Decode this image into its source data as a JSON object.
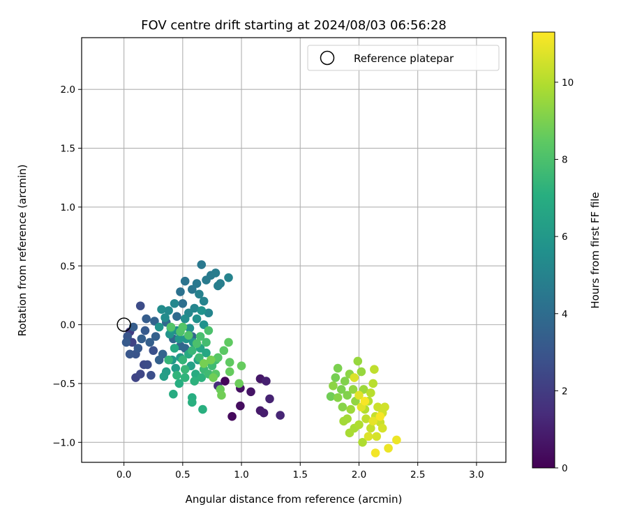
{
  "chart_data": {
    "type": "scatter",
    "title": "FOV centre drift starting at 2024/08/03 06:56:28",
    "xlabel": "Angular distance from reference (arcmin)",
    "ylabel": "Rotation from reference (arcmin)",
    "xlim": [
      -0.36,
      3.25
    ],
    "ylim": [
      -1.17,
      2.44
    ],
    "xticks": [
      0.0,
      0.5,
      1.0,
      1.5,
      2.0,
      2.5,
      3.0
    ],
    "xtick_labels": [
      "0.0",
      "0.5",
      "1.0",
      "1.5",
      "2.0",
      "2.5",
      "3.0"
    ],
    "yticks": [
      -1.0,
      -0.5,
      0.0,
      0.5,
      1.0,
      1.5,
      2.0
    ],
    "ytick_labels": [
      "−1.0",
      "−0.5",
      "0.0",
      "0.5",
      "1.0",
      "1.5",
      "2.0"
    ],
    "grid": true,
    "legend": {
      "label": "Reference platepar",
      "placement": "top-right"
    },
    "reference_point": {
      "x": 0.0,
      "y": 0.0
    },
    "colorbar": {
      "label": "Hours from first FF file",
      "range": [
        0,
        11.3
      ],
      "ticks": [
        0,
        2,
        4,
        6,
        8,
        10
      ],
      "tick_labels": [
        "0",
        "2",
        "4",
        "6",
        "8",
        "10"
      ],
      "colormap": "viridis"
    },
    "points": [
      {
        "x": 0.86,
        "y": -0.48,
        "c": 0.2
      },
      {
        "x": 0.92,
        "y": -0.78,
        "c": 0.3
      },
      {
        "x": 0.99,
        "y": -0.69,
        "c": 0.4
      },
      {
        "x": 0.99,
        "y": -0.54,
        "c": 0.5
      },
      {
        "x": 1.08,
        "y": -0.57,
        "c": 0.6
      },
      {
        "x": 1.16,
        "y": -0.46,
        "c": 0.7
      },
      {
        "x": 1.16,
        "y": -0.73,
        "c": 0.8
      },
      {
        "x": 1.19,
        "y": -0.75,
        "c": 0.9
      },
      {
        "x": 1.21,
        "y": -0.48,
        "c": 1.0
      },
      {
        "x": 1.24,
        "y": -0.63,
        "c": 1.1
      },
      {
        "x": 1.33,
        "y": -0.77,
        "c": 1.2
      },
      {
        "x": 0.8,
        "y": -0.52,
        "c": 1.4
      },
      {
        "x": 0.05,
        "y": -0.06,
        "c": 2.0
      },
      {
        "x": 0.07,
        "y": -0.15,
        "c": 2.2
      },
      {
        "x": 0.1,
        "y": -0.45,
        "c": 2.3
      },
      {
        "x": 0.14,
        "y": -0.42,
        "c": 2.4
      },
      {
        "x": 0.14,
        "y": 0.16,
        "c": 2.6
      },
      {
        "x": 0.17,
        "y": -0.34,
        "c": 2.5
      },
      {
        "x": 0.2,
        "y": -0.34,
        "c": 2.6
      },
      {
        "x": 0.23,
        "y": -0.43,
        "c": 2.7
      },
      {
        "x": 0.25,
        "y": -0.22,
        "c": 2.8
      },
      {
        "x": 0.1,
        "y": -0.25,
        "c": 2.9
      },
      {
        "x": 0.03,
        "y": -0.1,
        "c": 3.0
      },
      {
        "x": 0.05,
        "y": -0.25,
        "c": 3.0
      },
      {
        "x": 0.12,
        "y": -0.2,
        "c": 3.1
      },
      {
        "x": 0.18,
        "y": -0.05,
        "c": 3.2
      },
      {
        "x": 0.19,
        "y": 0.05,
        "c": 3.3
      },
      {
        "x": 0.02,
        "y": -0.15,
        "c": 3.2
      },
      {
        "x": 0.08,
        "y": -0.02,
        "c": 3.3
      },
      {
        "x": 0.15,
        "y": -0.12,
        "c": 3.4
      },
      {
        "x": 0.22,
        "y": -0.15,
        "c": 3.4
      },
      {
        "x": 0.27,
        "y": -0.1,
        "c": 3.5
      },
      {
        "x": 0.3,
        "y": -0.3,
        "c": 3.5
      },
      {
        "x": 0.33,
        "y": -0.25,
        "c": 3.6
      },
      {
        "x": 0.26,
        "y": 0.03,
        "c": 3.6
      },
      {
        "x": 0.42,
        "y": -0.12,
        "c": 3.7
      },
      {
        "x": 0.48,
        "y": -0.18,
        "c": 3.7
      },
      {
        "x": 0.52,
        "y": -0.2,
        "c": 3.8
      },
      {
        "x": 0.58,
        "y": -0.1,
        "c": 3.8
      },
      {
        "x": 0.45,
        "y": 0.07,
        "c": 3.9
      },
      {
        "x": 0.36,
        "y": 0.02,
        "c": 3.9
      },
      {
        "x": 0.4,
        "y": -0.03,
        "c": 4.0
      },
      {
        "x": 0.5,
        "y": 0.18,
        "c": 4.1
      },
      {
        "x": 0.48,
        "y": 0.28,
        "c": 4.2
      },
      {
        "x": 0.52,
        "y": 0.37,
        "c": 4.3
      },
      {
        "x": 0.58,
        "y": 0.3,
        "c": 4.4
      },
      {
        "x": 0.62,
        "y": 0.35,
        "c": 4.5
      },
      {
        "x": 0.66,
        "y": 0.51,
        "c": 4.5
      },
      {
        "x": 0.7,
        "y": 0.38,
        "c": 4.6
      },
      {
        "x": 0.74,
        "y": 0.42,
        "c": 4.6
      },
      {
        "x": 0.78,
        "y": 0.44,
        "c": 4.7
      },
      {
        "x": 0.8,
        "y": 0.33,
        "c": 4.8
      },
      {
        "x": 0.82,
        "y": 0.35,
        "c": 4.8
      },
      {
        "x": 0.89,
        "y": 0.4,
        "c": 5.0
      },
      {
        "x": 0.64,
        "y": 0.26,
        "c": 4.9
      },
      {
        "x": 0.68,
        "y": 0.2,
        "c": 5.0
      },
      {
        "x": 0.72,
        "y": 0.1,
        "c": 5.1
      },
      {
        "x": 0.6,
        "y": 0.14,
        "c": 5.1
      },
      {
        "x": 0.55,
        "y": 0.1,
        "c": 5.2
      },
      {
        "x": 0.43,
        "y": 0.18,
        "c": 5.2
      },
      {
        "x": 0.38,
        "y": 0.12,
        "c": 5.3
      },
      {
        "x": 0.32,
        "y": 0.13,
        "c": 5.4
      },
      {
        "x": 0.35,
        "y": 0.06,
        "c": 5.4
      },
      {
        "x": 0.45,
        "y": -0.05,
        "c": 5.5
      },
      {
        "x": 0.52,
        "y": 0.05,
        "c": 5.5
      },
      {
        "x": 0.56,
        "y": -0.03,
        "c": 5.6
      },
      {
        "x": 0.62,
        "y": 0.05,
        "c": 5.6
      },
      {
        "x": 0.66,
        "y": 0.12,
        "c": 5.7
      },
      {
        "x": 0.68,
        "y": 0.0,
        "c": 5.7
      },
      {
        "x": 0.3,
        "y": -0.02,
        "c": 5.8
      },
      {
        "x": 0.39,
        "y": -0.08,
        "c": 5.8
      },
      {
        "x": 0.47,
        "y": -0.12,
        "c": 5.9
      },
      {
        "x": 0.53,
        "y": -0.12,
        "c": 5.9
      },
      {
        "x": 0.59,
        "y": -0.15,
        "c": 6.0
      },
      {
        "x": 0.41,
        "y": -0.3,
        "c": 6.0
      },
      {
        "x": 0.48,
        "y": -0.28,
        "c": 6.1
      },
      {
        "x": 0.36,
        "y": -0.4,
        "c": 6.2
      },
      {
        "x": 0.44,
        "y": -0.37,
        "c": 6.2
      },
      {
        "x": 0.34,
        "y": -0.44,
        "c": 6.3
      },
      {
        "x": 0.57,
        "y": -0.35,
        "c": 6.4
      },
      {
        "x": 0.63,
        "y": -0.3,
        "c": 6.5
      },
      {
        "x": 0.65,
        "y": -0.2,
        "c": 6.6
      },
      {
        "x": 0.7,
        "y": -0.24,
        "c": 6.7
      },
      {
        "x": 0.4,
        "y": -0.03,
        "c": 6.7
      },
      {
        "x": 0.43,
        "y": -0.2,
        "c": 6.8
      },
      {
        "x": 0.55,
        "y": -0.25,
        "c": 6.8
      },
      {
        "x": 0.61,
        "y": -0.42,
        "c": 6.9
      },
      {
        "x": 0.42,
        "y": -0.59,
        "c": 6.9
      },
      {
        "x": 0.47,
        "y": -0.5,
        "c": 7.0
      },
      {
        "x": 0.58,
        "y": -0.62,
        "c": 7.0
      },
      {
        "x": 0.58,
        "y": -0.66,
        "c": 7.1
      },
      {
        "x": 0.67,
        "y": -0.72,
        "c": 7.1
      },
      {
        "x": 0.6,
        "y": -0.48,
        "c": 7.2
      },
      {
        "x": 0.66,
        "y": -0.45,
        "c": 7.2
      },
      {
        "x": 0.52,
        "y": -0.45,
        "c": 7.3
      },
      {
        "x": 0.45,
        "y": -0.43,
        "c": 7.3
      },
      {
        "x": 0.38,
        "y": -0.3,
        "c": 7.4
      },
      {
        "x": 0.5,
        "y": -0.3,
        "c": 7.4
      },
      {
        "x": 0.52,
        "y": -0.38,
        "c": 7.5
      },
      {
        "x": 0.58,
        "y": -0.22,
        "c": 7.5
      },
      {
        "x": 0.64,
        "y": -0.28,
        "c": 7.6
      },
      {
        "x": 0.68,
        "y": -0.38,
        "c": 7.6
      },
      {
        "x": 0.72,
        "y": -0.42,
        "c": 7.7
      },
      {
        "x": 0.75,
        "y": -0.35,
        "c": 7.7
      },
      {
        "x": 0.78,
        "y": -0.3,
        "c": 7.8
      },
      {
        "x": 0.7,
        "y": -0.15,
        "c": 7.8
      },
      {
        "x": 0.65,
        "y": -0.1,
        "c": 7.9
      },
      {
        "x": 0.72,
        "y": -0.05,
        "c": 8.0
      },
      {
        "x": 0.62,
        "y": -0.16,
        "c": 8.0
      },
      {
        "x": 0.55,
        "y": -0.09,
        "c": 8.1
      },
      {
        "x": 0.48,
        "y": -0.06,
        "c": 8.1
      },
      {
        "x": 0.4,
        "y": -0.02,
        "c": 8.2
      },
      {
        "x": 0.5,
        "y": -0.02,
        "c": 8.2
      },
      {
        "x": 0.78,
        "y": -0.42,
        "c": 8.3
      },
      {
        "x": 0.8,
        "y": -0.28,
        "c": 8.3
      },
      {
        "x": 0.85,
        "y": -0.22,
        "c": 8.4
      },
      {
        "x": 0.89,
        "y": -0.15,
        "c": 8.5
      },
      {
        "x": 0.9,
        "y": -0.32,
        "c": 8.5
      },
      {
        "x": 0.9,
        "y": -0.4,
        "c": 8.6
      },
      {
        "x": 1.0,
        "y": -0.35,
        "c": 8.6
      },
      {
        "x": 0.98,
        "y": -0.5,
        "c": 8.7
      },
      {
        "x": 0.82,
        "y": -0.55,
        "c": 8.7
      },
      {
        "x": 0.83,
        "y": -0.6,
        "c": 8.8
      },
      {
        "x": 0.76,
        "y": -0.45,
        "c": 8.8
      },
      {
        "x": 0.74,
        "y": -0.3,
        "c": 8.9
      },
      {
        "x": 0.68,
        "y": -0.33,
        "c": 8.9
      },
      {
        "x": 1.76,
        "y": -0.61,
        "c": 8.8
      },
      {
        "x": 1.8,
        "y": -0.45,
        "c": 8.9
      },
      {
        "x": 1.82,
        "y": -0.37,
        "c": 9.0
      },
      {
        "x": 1.85,
        "y": -0.55,
        "c": 9.0
      },
      {
        "x": 1.88,
        "y": -0.48,
        "c": 9.1
      },
      {
        "x": 1.9,
        "y": -0.6,
        "c": 9.1
      },
      {
        "x": 1.86,
        "y": -0.7,
        "c": 9.2
      },
      {
        "x": 1.82,
        "y": -0.62,
        "c": 9.2
      },
      {
        "x": 1.78,
        "y": -0.52,
        "c": 9.3
      },
      {
        "x": 1.92,
        "y": -0.42,
        "c": 9.3
      },
      {
        "x": 1.95,
        "y": -0.55,
        "c": 9.4
      },
      {
        "x": 1.97,
        "y": -0.65,
        "c": 9.4
      },
      {
        "x": 1.99,
        "y": -0.31,
        "c": 9.5
      },
      {
        "x": 2.02,
        "y": -0.4,
        "c": 9.5
      },
      {
        "x": 2.04,
        "y": -0.55,
        "c": 9.6
      },
      {
        "x": 1.93,
        "y": -0.72,
        "c": 9.6
      },
      {
        "x": 1.9,
        "y": -0.8,
        "c": 9.7
      },
      {
        "x": 1.87,
        "y": -0.82,
        "c": 9.7
      },
      {
        "x": 1.92,
        "y": -0.92,
        "c": 9.8
      },
      {
        "x": 1.96,
        "y": -0.88,
        "c": 9.8
      },
      {
        "x": 2.0,
        "y": -0.85,
        "c": 9.9
      },
      {
        "x": 2.03,
        "y": -1.0,
        "c": 9.9
      },
      {
        "x": 2.05,
        "y": -0.72,
        "c": 10.0
      },
      {
        "x": 2.08,
        "y": -0.65,
        "c": 10.0
      },
      {
        "x": 2.1,
        "y": -0.58,
        "c": 10.1
      },
      {
        "x": 2.12,
        "y": -0.5,
        "c": 10.1
      },
      {
        "x": 2.13,
        "y": -0.38,
        "c": 10.2
      },
      {
        "x": 2.06,
        "y": -0.8,
        "c": 10.2
      },
      {
        "x": 2.1,
        "y": -0.88,
        "c": 10.3
      },
      {
        "x": 2.14,
        "y": -0.78,
        "c": 10.3
      },
      {
        "x": 2.16,
        "y": -0.7,
        "c": 10.4
      },
      {
        "x": 2.18,
        "y": -0.83,
        "c": 10.4
      },
      {
        "x": 2.2,
        "y": -0.75,
        "c": 10.5
      },
      {
        "x": 2.22,
        "y": -0.7,
        "c": 10.5
      },
      {
        "x": 2.2,
        "y": -0.88,
        "c": 10.6
      },
      {
        "x": 2.15,
        "y": -0.95,
        "c": 10.6
      },
      {
        "x": 2.08,
        "y": -0.95,
        "c": 10.7
      },
      {
        "x": 1.96,
        "y": -0.45,
        "c": 10.7
      },
      {
        "x": 2.0,
        "y": -0.6,
        "c": 10.8
      },
      {
        "x": 2.02,
        "y": -0.7,
        "c": 10.8
      },
      {
        "x": 2.12,
        "y": -0.82,
        "c": 10.9
      },
      {
        "x": 2.25,
        "y": -1.05,
        "c": 11.0
      },
      {
        "x": 2.32,
        "y": -0.98,
        "c": 11.0
      },
      {
        "x": 2.14,
        "y": -1.09,
        "c": 11.1
      },
      {
        "x": 2.05,
        "y": -0.65,
        "c": 11.2
      },
      {
        "x": 2.18,
        "y": -0.78,
        "c": 11.2
      }
    ]
  }
}
